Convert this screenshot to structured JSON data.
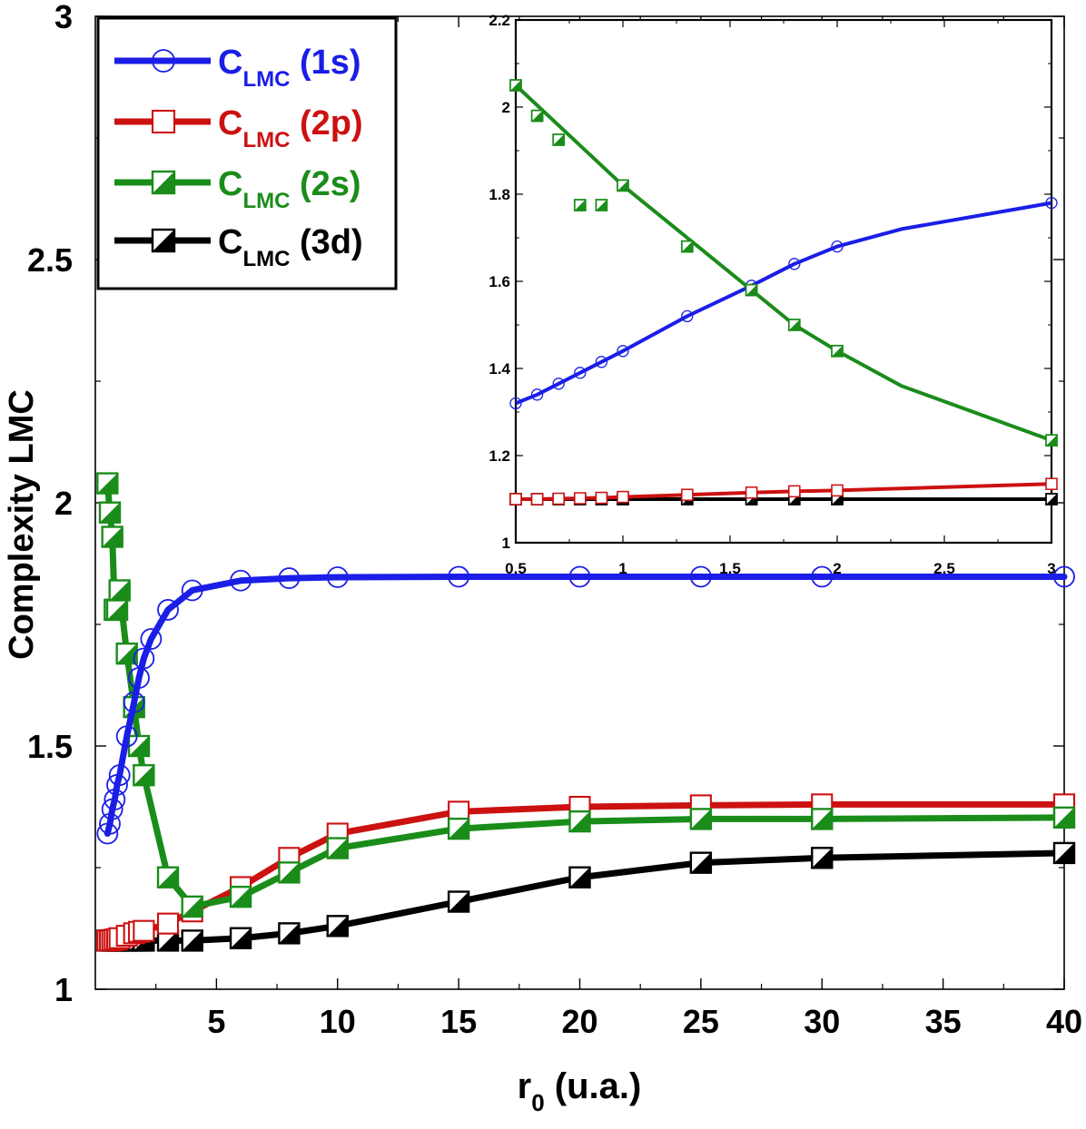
{
  "chart_data": [
    {
      "id": "main",
      "type": "line",
      "title": "",
      "xlabel": "r",
      "xlabel_sub": "0",
      "xlabel_tail": " (u.a.)",
      "ylabel": "Complexity LMC",
      "xlim": [
        0,
        40
      ],
      "ylim": [
        1,
        3
      ],
      "xticks": [
        5,
        10,
        15,
        20,
        25,
        30,
        35,
        40
      ],
      "yticks": [
        1,
        1.5,
        2,
        2.5,
        3
      ],
      "xtick_labels": [
        "5",
        "10",
        "15",
        "20",
        "25",
        "30",
        "35",
        "40"
      ],
      "ytick_labels": [
        "1",
        "1.5",
        "2",
        "2.5",
        "3"
      ],
      "legend_position": "top-left",
      "series": [
        {
          "name": "1s",
          "legend_main": "C",
          "legend_sub": "LMC",
          "legend_tail": " (1s)",
          "color": "#1a1ee6",
          "marker": "circle",
          "x": [
            0.5,
            0.6,
            0.7,
            0.8,
            0.9,
            1,
            1.3,
            1.6,
            1.8,
            2,
            2.3,
            3,
            4,
            6,
            8,
            10,
            15,
            20,
            25,
            30,
            40
          ],
          "y": [
            1.32,
            1.34,
            1.37,
            1.39,
            1.42,
            1.44,
            1.52,
            1.59,
            1.64,
            1.68,
            1.72,
            1.78,
            1.82,
            1.84,
            1.845,
            1.847,
            1.848,
            1.848,
            1.848,
            1.848,
            1.848
          ]
        },
        {
          "name": "2p",
          "legend_main": "C",
          "legend_sub": "LMC",
          "legend_tail": " (2p)",
          "color": "#cc1111",
          "marker": "square",
          "x": [
            0.5,
            0.6,
            0.7,
            0.8,
            0.9,
            1,
            1.3,
            1.6,
            1.8,
            2,
            3,
            4,
            6,
            8,
            10,
            15,
            20,
            25,
            30,
            40
          ],
          "y": [
            1.1,
            1.1,
            1.101,
            1.102,
            1.103,
            1.105,
            1.11,
            1.115,
            1.118,
            1.12,
            1.135,
            1.16,
            1.21,
            1.27,
            1.32,
            1.365,
            1.375,
            1.378,
            1.38,
            1.38
          ]
        },
        {
          "name": "2s",
          "legend_main": "C",
          "legend_sub": "LMC",
          "legend_tail": " (2s)",
          "color": "#1a8c1a",
          "marker": "halfsquare",
          "x": [
            0.5,
            0.6,
            0.7,
            0.8,
            0.9,
            1,
            1.3,
            1.6,
            1.8,
            2,
            3,
            4,
            6,
            8,
            10,
            15,
            20,
            25,
            30,
            40
          ],
          "y": [
            2.04,
            1.98,
            1.93,
            1.78,
            1.78,
            1.82,
            1.69,
            1.58,
            1.5,
            1.44,
            1.23,
            1.17,
            1.19,
            1.24,
            1.29,
            1.33,
            1.345,
            1.35,
            1.35,
            1.353
          ]
        },
        {
          "name": "3d",
          "legend_main": "C",
          "legend_sub": "LMC",
          "legend_tail": " (3d)",
          "color": "#000000",
          "marker": "halfsquare",
          "x": [
            0.5,
            0.6,
            0.7,
            0.8,
            0.9,
            1,
            1.3,
            1.6,
            1.8,
            2,
            3,
            4,
            6,
            8,
            10,
            15,
            20,
            25,
            30,
            40
          ],
          "y": [
            1.1,
            1.1,
            1.1,
            1.1,
            1.1,
            1.1,
            1.1,
            1.1,
            1.1,
            1.1,
            1.1,
            1.1,
            1.105,
            1.115,
            1.13,
            1.18,
            1.23,
            1.26,
            1.27,
            1.28
          ]
        }
      ]
    },
    {
      "id": "inset",
      "type": "line",
      "title": "",
      "xlim": [
        0.5,
        3
      ],
      "ylim": [
        1,
        2.2
      ],
      "xticks": [
        0.5,
        1,
        1.5,
        2,
        2.5,
        3
      ],
      "yticks": [
        1,
        1.2,
        1.4,
        1.6,
        1.8,
        2,
        2.2
      ],
      "xtick_labels": [
        "0.5",
        "1",
        "1.5",
        "2",
        "2.5",
        "3"
      ],
      "ytick_labels": [
        "1",
        "1.2",
        "1.4",
        "1.6",
        "1.8",
        "2",
        "2.2"
      ],
      "series": [
        {
          "name": "1s",
          "color": "#1a1ee6",
          "marker": "circle",
          "line_x": [
            0.5,
            0.6,
            0.7,
            0.8,
            0.9,
            1,
            1.3,
            1.6,
            1.7,
            1.8,
            2,
            2.3,
            3
          ],
          "line_y": [
            1.32,
            1.34,
            1.365,
            1.39,
            1.415,
            1.44,
            1.52,
            1.59,
            1.615,
            1.64,
            1.68,
            1.72,
            1.78
          ],
          "marker_x": [
            0.5,
            0.6,
            0.7,
            0.8,
            0.9,
            1,
            1.3,
            1.6,
            1.8,
            2,
            3
          ],
          "marker_y": [
            1.32,
            1.34,
            1.365,
            1.39,
            1.415,
            1.44,
            1.52,
            1.59,
            1.64,
            1.68,
            1.78
          ]
        },
        {
          "name": "2p",
          "color": "#cc1111",
          "marker": "square",
          "line_x": [
            0.5,
            0.6,
            0.7,
            0.8,
            0.9,
            1,
            1.3,
            1.6,
            1.8,
            2,
            3
          ],
          "line_y": [
            1.1,
            1.1,
            1.101,
            1.102,
            1.103,
            1.105,
            1.11,
            1.115,
            1.118,
            1.12,
            1.135
          ],
          "marker_x": [
            0.5,
            0.6,
            0.7,
            0.8,
            0.9,
            1,
            1.3,
            1.6,
            1.8,
            2,
            3
          ],
          "marker_y": [
            1.1,
            1.1,
            1.101,
            1.102,
            1.103,
            1.105,
            1.11,
            1.115,
            1.118,
            1.12,
            1.135
          ]
        },
        {
          "name": "2s",
          "color": "#1a8c1a",
          "marker": "halfsquare",
          "line_x": [
            0.5,
            1,
            1.3,
            1.6,
            1.8,
            2,
            2.3,
            3
          ],
          "line_y": [
            2.05,
            1.82,
            1.7,
            1.58,
            1.5,
            1.44,
            1.36,
            1.235
          ],
          "marker_x": [
            0.5,
            0.6,
            0.7,
            0.8,
            0.9,
            1,
            1.3,
            1.6,
            1.8,
            2,
            3
          ],
          "marker_y": [
            2.05,
            1.98,
            1.925,
            1.775,
            1.775,
            1.82,
            1.68,
            1.58,
            1.5,
            1.44,
            1.235
          ]
        },
        {
          "name": "3d",
          "color": "#000000",
          "marker": "halfsquare",
          "line_x": [
            0.5,
            3
          ],
          "line_y": [
            1.1,
            1.1
          ],
          "marker_x": [
            0.5,
            0.6,
            0.7,
            0.8,
            0.9,
            1,
            1.3,
            1.6,
            1.8,
            2,
            3
          ],
          "marker_y": [
            1.1,
            1.1,
            1.1,
            1.1,
            1.1,
            1.1,
            1.1,
            1.1,
            1.1,
            1.1,
            1.1
          ]
        }
      ]
    }
  ]
}
